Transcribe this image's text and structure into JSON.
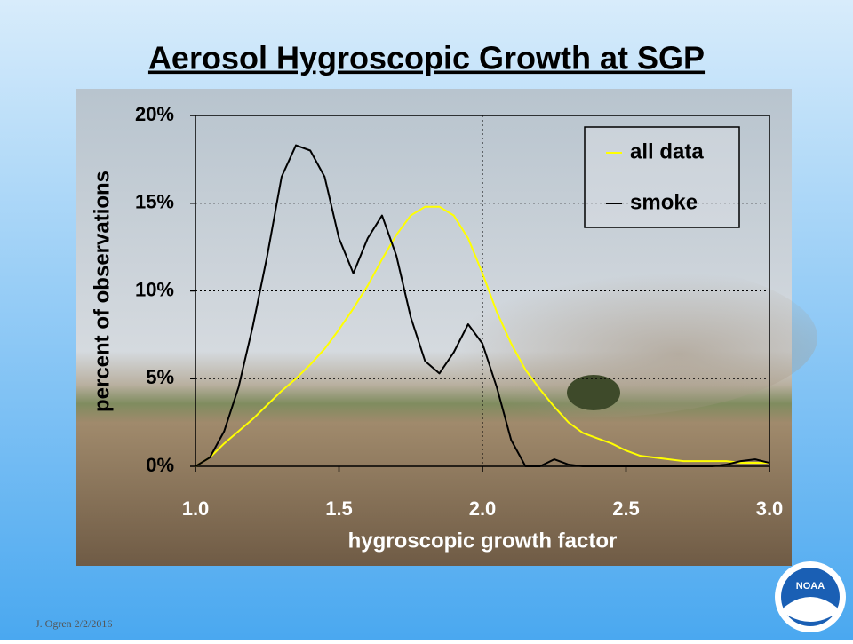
{
  "chart_data": {
    "type": "line",
    "title": "Aerosol Hygroscopic Growth at SGP",
    "x_label": "hygroscopic growth factor",
    "y_label": "percent of observations",
    "x": [
      1.0,
      1.05,
      1.1,
      1.15,
      1.2,
      1.25,
      1.3,
      1.35,
      1.4,
      1.45,
      1.5,
      1.55,
      1.6,
      1.65,
      1.7,
      1.75,
      1.8,
      1.85,
      1.9,
      1.95,
      2.0,
      2.05,
      2.1,
      2.15,
      2.2,
      2.25,
      2.3,
      2.35,
      2.4,
      2.45,
      2.5,
      2.55,
      2.6,
      2.65,
      2.7,
      2.75,
      2.8,
      2.85,
      2.9,
      2.95,
      3.0
    ],
    "series": [
      {
        "name": "all data",
        "color": "#ffff00",
        "values": [
          0,
          0.5,
          1.3,
          2,
          2.7,
          3.5,
          4.3,
          5,
          5.8,
          6.7,
          7.8,
          9,
          10.3,
          11.8,
          13.2,
          14.3,
          14.8,
          14.8,
          14.3,
          13,
          11,
          8.8,
          7,
          5.5,
          4.4,
          3.4,
          2.5,
          1.9,
          1.6,
          1.3,
          0.9,
          0.6,
          0.5,
          0.4,
          0.3,
          0.3,
          0.3,
          0.3,
          0.2,
          0.2,
          0.2
        ]
      },
      {
        "name": "smoke",
        "color": "#000000",
        "values": [
          0,
          0.5,
          2,
          4.5,
          8,
          12,
          16.5,
          18.3,
          18,
          16.5,
          13,
          11,
          13,
          14.3,
          12,
          8.5,
          6,
          5.3,
          6.5,
          8.1,
          7,
          4.5,
          1.5,
          0,
          0,
          0.4,
          0.1,
          0,
          0,
          0,
          0,
          0,
          0,
          0,
          0,
          0,
          0,
          0.1,
          0.3,
          0.4,
          0.2
        ]
      }
    ],
    "xlim": [
      1,
      3
    ],
    "ylim": [
      0,
      20
    ],
    "xticks": [
      {
        "value": 1,
        "label": "1.0"
      },
      1.5,
      {
        "value": 2,
        "label": "2.0"
      },
      2.5,
      {
        "value": 3,
        "label": "3.0"
      }
    ],
    "yticks": [
      {
        "value": 0,
        "label": "0%"
      },
      {
        "value": 5,
        "label": "5%"
      },
      {
        "value": 10,
        "label": "10%"
      },
      {
        "value": 15,
        "label": "15%"
      },
      {
        "value": 20,
        "label": "20%"
      }
    ],
    "grid": true,
    "legend": "upper right"
  },
  "footer": "J. Ogren  2/2/2016",
  "logo": "NOAA"
}
